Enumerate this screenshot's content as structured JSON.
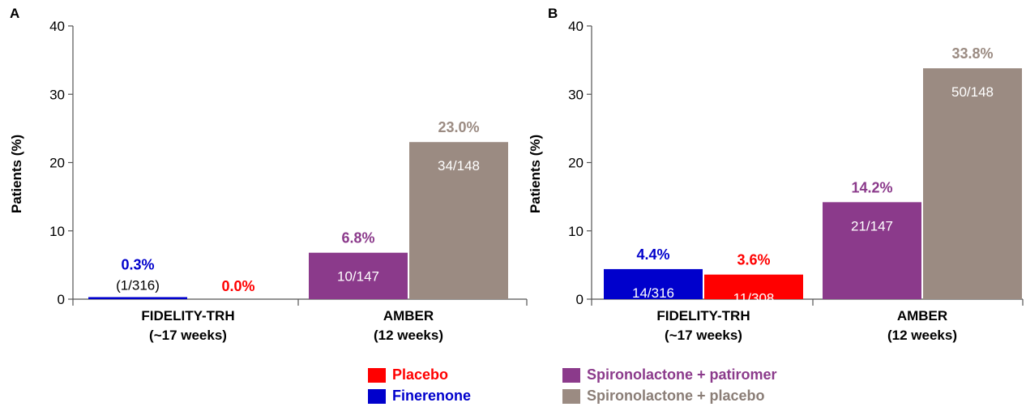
{
  "colors": {
    "placebo": "#ff0000",
    "finerenone": "#0000cc",
    "spiro_patiromer": "#8b3a8b",
    "spiro_placebo": "#9b8b82"
  },
  "legend": [
    {
      "label": "Placebo",
      "color": "#ff0000",
      "text_color": "#ff0000"
    },
    {
      "label": "Finerenone",
      "color": "#0000cc",
      "text_color": "#0000cc"
    },
    {
      "label": "Spironolactone + patiromer",
      "color": "#8b3a8b",
      "text_color": "#8b3a8b"
    },
    {
      "label": "Spironolactone + placebo",
      "color": "#9b8b82",
      "text_color": "#8a7d76"
    }
  ],
  "chart_data": [
    {
      "type": "bar",
      "panel": "A",
      "ylabel": "Patients (%)",
      "ylim": [
        0,
        40
      ],
      "yticks": [
        "0",
        "10",
        "20",
        "30",
        "40"
      ],
      "categories": [
        {
          "line1": "FIDELITY-TRH",
          "line2": "(~17 weeks)"
        },
        {
          "line1": "AMBER",
          "line2": "(12 weeks)"
        }
      ],
      "bars": [
        {
          "group": 0,
          "slot": 0,
          "value": 0.3,
          "color": "#0000cc",
          "pct_label": "0.3%",
          "count_label": "(1/316)",
          "count_inside": false
        },
        {
          "group": 0,
          "slot": 1,
          "value": 0.0,
          "color": "#ff0000",
          "pct_label": "0.0%",
          "count_label": "",
          "count_inside": false
        },
        {
          "group": 1,
          "slot": 0,
          "value": 6.8,
          "color": "#8b3a8b",
          "pct_label": "6.8%",
          "count_label": "10/147",
          "count_inside": true
        },
        {
          "group": 1,
          "slot": 1,
          "value": 23.0,
          "color": "#9b8b82",
          "pct_label": "23.0%",
          "count_label": "34/148",
          "count_inside": true
        }
      ]
    },
    {
      "type": "bar",
      "panel": "B",
      "ylabel": "Patients (%)",
      "ylim": [
        0,
        40
      ],
      "yticks": [
        "0",
        "10",
        "20",
        "30",
        "40"
      ],
      "categories": [
        {
          "line1": "FIDELITY-TRH",
          "line2": "(~17 weeks)"
        },
        {
          "line1": "AMBER",
          "line2": "(12 weeks)"
        }
      ],
      "bars": [
        {
          "group": 0,
          "slot": 0,
          "value": 4.4,
          "color": "#0000cc",
          "pct_label": "4.4%",
          "count_label": "14/316",
          "count_inside": true
        },
        {
          "group": 0,
          "slot": 1,
          "value": 3.6,
          "color": "#ff0000",
          "pct_label": "3.6%",
          "count_label": "11/308",
          "count_inside": true
        },
        {
          "group": 1,
          "slot": 0,
          "value": 14.2,
          "color": "#8b3a8b",
          "pct_label": "14.2%",
          "count_label": "21/147",
          "count_inside": true
        },
        {
          "group": 1,
          "slot": 1,
          "value": 33.8,
          "color": "#9b8b82",
          "pct_label": "33.8%",
          "count_label": "50/148",
          "count_inside": true
        }
      ]
    }
  ]
}
